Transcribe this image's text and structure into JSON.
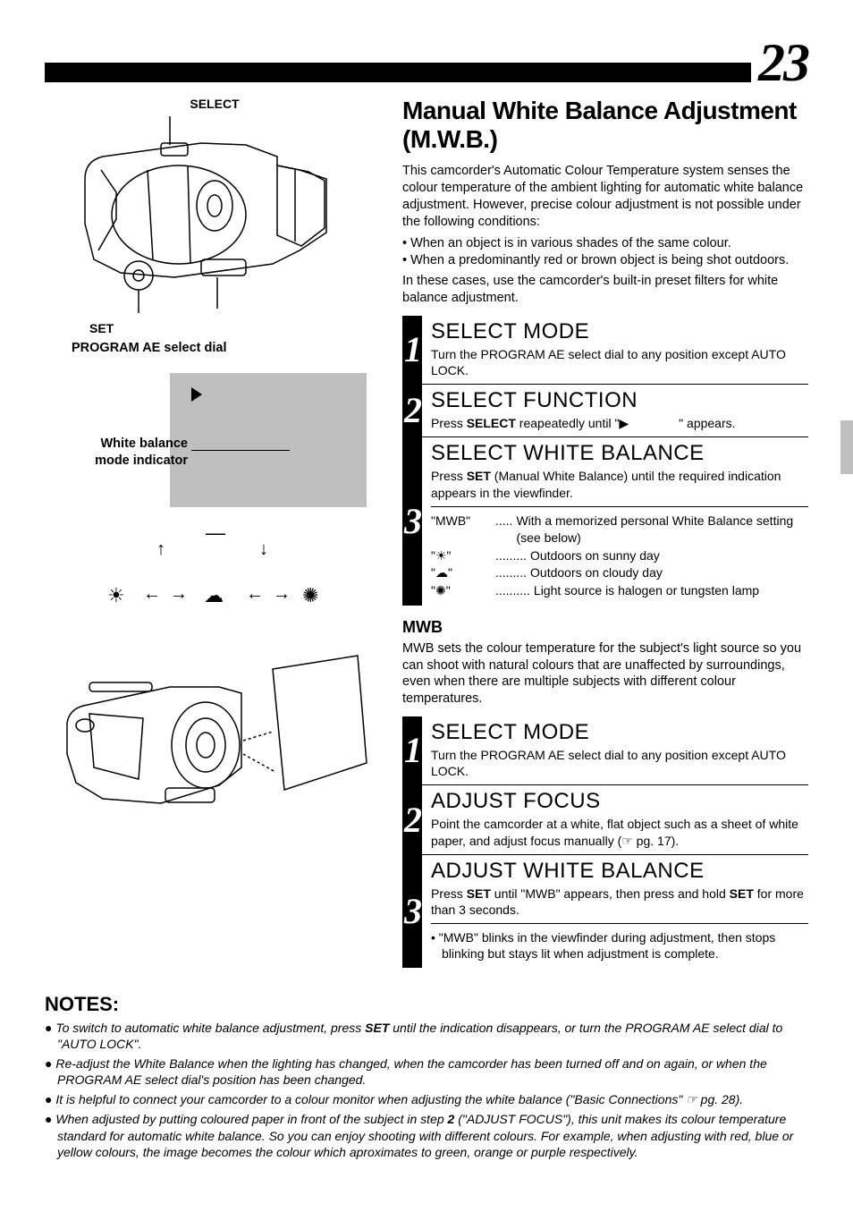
{
  "page_number": "23",
  "main_title": "Manual White Balance Adjustment (M.W.B.)",
  "intro": "This camcorder's Automatic Colour Temperature system senses the colour temperature of the ambient lighting for automatic white balance adjustment. However, precise colour adjustment is not possible under the following conditions:",
  "intro_bullets": [
    "When an object is in various shades of the same colour.",
    "When a predominantly red or brown object is being shot outdoors."
  ],
  "intro2": "In these cases, use the camcorder's built-in preset filters for white balance adjustment.",
  "steps_a": [
    {
      "num": "1",
      "title": "SELECT MODE",
      "body_html": "Turn the PROGRAM AE select dial to any position except AUTO LOCK."
    },
    {
      "num": "2",
      "title": "SELECT FUNCTION",
      "body_html": "Press <b>SELECT</b> reapeatedly until \"▶    \" appears."
    },
    {
      "num": "3",
      "title": "SELECT WHITE BALANCE",
      "body_html": "Press <b>SET</b> (Manual White Balance) until the required indication appears in the viewfinder.",
      "box": [
        {
          "key": "\"MWB\"",
          "dots": ".....",
          "val": "With a memorized personal White Balance setting (see below)"
        },
        {
          "key": "\"☀\"",
          "dots": ".........",
          "val": "Outdoors on sunny day"
        },
        {
          "key": "\"☁\"",
          "dots": ".........",
          "val": "Outdoors on cloudy day"
        },
        {
          "key": "\"✺\"",
          "dots": "..........",
          "val": "Light source is halogen or tungsten lamp"
        }
      ]
    }
  ],
  "mwb_title": "MWB",
  "mwb_body": "MWB sets the colour temperature for the subject's light source so you can shoot with natural colours that are unaffected by surroundings, even when there are multiple subjects with different colour temperatures.",
  "steps_b": [
    {
      "num": "1",
      "title": "SELECT MODE",
      "body_html": "Turn the PROGRAM AE select dial to any position except AUTO LOCK."
    },
    {
      "num": "2",
      "title": "ADJUST FOCUS",
      "body_html": "Point the camcorder at a white, flat object such as a sheet of white paper, and adjust focus manually (☞ pg. 17)."
    },
    {
      "num": "3",
      "title": "ADJUST WHITE BALANCE",
      "body_html": "Press <b>SET</b> until \"MWB\" appears, then press and hold <b>SET</b> for more than 3 seconds.",
      "note": "\"MWB\" blinks in the viewfinder during adjustment, then stops blinking but stays lit when adjustment is complete."
    }
  ],
  "notes_title": "NOTES:",
  "notes": [
    "To switch to automatic white balance adjustment, press <b>SET</b> until the indication disappears, or turn the PROGRAM AE select dial to \"AUTO LOCK\".",
    "Re-adjust the White Balance when the lighting has changed, when the camcorder has been turned off and on again, or when the PROGRAM AE select dial's position has been changed.",
    "It is helpful to connect your camcorder to a colour monitor when adjusting the white balance (\"Basic Connections\" ☞ pg. 28).",
    "When adjusted by putting coloured paper in front of the subject in step <b>2</b> (\"ADJUST FOCUS\"), this unit makes its colour temperature standard for automatic white balance. So you can enjoy shooting with different colours. For example, when adjusting with red, blue or yellow colours, the image becomes the colour which aproximates to green, orange or purple respectively."
  ],
  "left": {
    "select_label": "SELECT",
    "set_label": "SET",
    "dial_label": "PROGRAM AE select dial",
    "wb_label": "White balance mode indicator",
    "cycle_icons": {
      "top": "—",
      "left": "☀",
      "mid": "☁",
      "right": "✺"
    }
  },
  "colors": {
    "black": "#000000",
    "white": "#ffffff",
    "grey": "#bfbfbf"
  }
}
